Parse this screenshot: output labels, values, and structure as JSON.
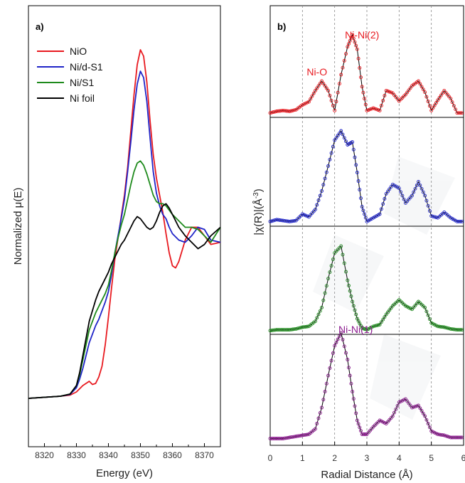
{
  "chart_data": [
    {
      "panel": "a)",
      "type": "line",
      "xlabel": "Energy (eV)",
      "ylabel_prefix": "Normalized ",
      "ylabel_symbol": "μ",
      "ylabel_suffix": "(E)",
      "xlim": [
        8315,
        8375
      ],
      "ylim": [
        -0.35,
        1.9
      ],
      "xticks": [
        8320,
        8330,
        8340,
        8350,
        8360,
        8370
      ],
      "legend_position": "top-left",
      "series": [
        {
          "name": "NiO",
          "color": "#e8191f",
          "x": [
            8315,
            8320,
            8325,
            8328,
            8330,
            8331,
            8332,
            8333,
            8334,
            8335,
            8336,
            8337,
            8338,
            8339,
            8340,
            8341,
            8342,
            8343,
            8344,
            8345,
            8346,
            8347,
            8348,
            8349,
            8350,
            8351,
            8352,
            8353,
            8354,
            8355,
            8356,
            8357,
            8358,
            8359,
            8360,
            8361,
            8362,
            8363,
            8364,
            8366,
            8368,
            8370,
            8372,
            8375
          ],
          "y": [
            0.0,
            0.005,
            0.01,
            0.015,
            0.03,
            0.045,
            0.06,
            0.07,
            0.08,
            0.065,
            0.07,
            0.1,
            0.15,
            0.25,
            0.38,
            0.52,
            0.65,
            0.75,
            0.85,
            0.95,
            1.08,
            1.25,
            1.42,
            1.56,
            1.63,
            1.6,
            1.48,
            1.3,
            1.14,
            1.03,
            0.95,
            0.87,
            0.77,
            0.68,
            0.62,
            0.61,
            0.64,
            0.69,
            0.74,
            0.8,
            0.8,
            0.76,
            0.72,
            0.73
          ]
        },
        {
          "name": "Ni/d-S1",
          "color": "#1f24c8",
          "x": [
            8315,
            8320,
            8325,
            8328,
            8330,
            8331,
            8332,
            8333,
            8334,
            8335,
            8336,
            8337,
            8338,
            8339,
            8340,
            8341,
            8342,
            8343,
            8344,
            8345,
            8346,
            8347,
            8348,
            8349,
            8350,
            8351,
            8352,
            8353,
            8354,
            8355,
            8356,
            8357,
            8358,
            8359,
            8360,
            8362,
            8364,
            8366,
            8368,
            8370,
            8372,
            8375
          ],
          "y": [
            0.0,
            0.005,
            0.01,
            0.018,
            0.05,
            0.09,
            0.14,
            0.2,
            0.26,
            0.3,
            0.34,
            0.37,
            0.41,
            0.45,
            0.5,
            0.58,
            0.68,
            0.76,
            0.84,
            0.93,
            1.06,
            1.2,
            1.35,
            1.47,
            1.53,
            1.5,
            1.39,
            1.22,
            1.06,
            0.96,
            0.9,
            0.86,
            0.84,
            0.8,
            0.77,
            0.74,
            0.73,
            0.76,
            0.8,
            0.79,
            0.74,
            0.73
          ]
        },
        {
          "name": "Ni/S1",
          "color": "#1e8a1c",
          "x": [
            8315,
            8320,
            8325,
            8328,
            8330,
            8331,
            8332,
            8333,
            8334,
            8335,
            8336,
            8337,
            8338,
            8339,
            8340,
            8341,
            8342,
            8343,
            8344,
            8345,
            8346,
            8347,
            8348,
            8349,
            8350,
            8351,
            8352,
            8353,
            8354,
            8355,
            8356,
            8357,
            8358,
            8359,
            8360,
            8362,
            8364,
            8366,
            8368,
            8370,
            8372,
            8375
          ],
          "y": [
            0.0,
            0.005,
            0.01,
            0.02,
            0.06,
            0.11,
            0.18,
            0.25,
            0.32,
            0.36,
            0.4,
            0.43,
            0.46,
            0.49,
            0.53,
            0.6,
            0.68,
            0.75,
            0.81,
            0.86,
            0.93,
            1.0,
            1.06,
            1.1,
            1.11,
            1.09,
            1.05,
            1.0,
            0.95,
            0.92,
            0.91,
            0.91,
            0.9,
            0.88,
            0.86,
            0.83,
            0.8,
            0.8,
            0.79,
            0.76,
            0.73,
            0.8
          ]
        },
        {
          "name": "Ni foil",
          "color": "#000000",
          "x": [
            8315,
            8320,
            8325,
            8328,
            8330,
            8331,
            8332,
            8333,
            8334,
            8335,
            8336,
            8337,
            8338,
            8339,
            8340,
            8341,
            8342,
            8343,
            8344,
            8345,
            8346,
            8347,
            8348,
            8349,
            8350,
            8351,
            8352,
            8353,
            8354,
            8355,
            8356,
            8357,
            8358,
            8359,
            8360,
            8362,
            8364,
            8366,
            8368,
            8370,
            8372,
            8375
          ],
          "y": [
            0.0,
            0.005,
            0.01,
            0.02,
            0.06,
            0.12,
            0.2,
            0.28,
            0.36,
            0.41,
            0.46,
            0.5,
            0.53,
            0.56,
            0.59,
            0.63,
            0.66,
            0.69,
            0.72,
            0.74,
            0.77,
            0.8,
            0.83,
            0.85,
            0.84,
            0.82,
            0.8,
            0.79,
            0.8,
            0.83,
            0.87,
            0.9,
            0.91,
            0.89,
            0.86,
            0.8,
            0.76,
            0.73,
            0.7,
            0.72,
            0.76,
            0.8
          ]
        }
      ]
    },
    {
      "panel": "b)",
      "type": "line",
      "xlabel": "Radial Distance (Å)",
      "ylabel_prefix": "|χ(R)|(Å",
      "ylabel_sup": "-3",
      "ylabel_suffix": ")",
      "xlim": [
        0,
        6
      ],
      "xticks": [
        0,
        1,
        2,
        3,
        4,
        5,
        6
      ],
      "grid": "vertical dashed at each integer",
      "stack": [
        {
          "sample": "NiO",
          "color": "#e8191f",
          "annotations": [
            {
              "text": "Ni-O",
              "x": 1.45
            },
            {
              "text": "Ni-Ni(2)",
              "x": 2.85
            }
          ],
          "r": [
            0,
            0.2,
            0.4,
            0.6,
            0.8,
            1.0,
            1.2,
            1.4,
            1.6,
            1.8,
            2.0,
            2.2,
            2.4,
            2.55,
            2.7,
            2.85,
            3.0,
            3.2,
            3.4,
            3.6,
            3.8,
            4.0,
            4.2,
            4.4,
            4.6,
            4.8,
            5.0,
            5.2,
            5.4,
            5.6,
            5.8,
            6.0
          ],
          "value": [
            0.02,
            0.04,
            0.05,
            0.04,
            0.06,
            0.12,
            0.16,
            0.3,
            0.42,
            0.3,
            0.05,
            0.5,
            0.85,
            1.0,
            0.82,
            0.35,
            0.05,
            0.08,
            0.05,
            0.3,
            0.27,
            0.17,
            0.25,
            0.36,
            0.42,
            0.28,
            0.05,
            0.18,
            0.3,
            0.2,
            0.02,
            0.02
          ]
        },
        {
          "sample": "Ni/d-S1",
          "color": "#1f24c8",
          "annotations": [],
          "r": [
            0,
            0.2,
            0.4,
            0.6,
            0.8,
            1.0,
            1.2,
            1.4,
            1.6,
            1.8,
            2.0,
            2.2,
            2.4,
            2.55,
            2.7,
            2.85,
            3.0,
            3.2,
            3.4,
            3.6,
            3.8,
            4.0,
            4.2,
            4.4,
            4.6,
            4.8,
            5.0,
            5.2,
            5.4,
            5.6,
            5.8,
            6.0
          ],
          "value": [
            0.02,
            0.04,
            0.03,
            0.02,
            0.03,
            0.1,
            0.07,
            0.15,
            0.35,
            0.62,
            0.9,
            1.0,
            0.85,
            0.88,
            0.55,
            0.18,
            0.02,
            0.06,
            0.1,
            0.32,
            0.42,
            0.38,
            0.22,
            0.3,
            0.45,
            0.3,
            0.08,
            0.06,
            0.12,
            0.06,
            0.02,
            0.02
          ]
        },
        {
          "sample": "Ni/S1",
          "color": "#1e8a1c",
          "annotations": [],
          "r": [
            0,
            0.2,
            0.4,
            0.6,
            0.8,
            1.0,
            1.2,
            1.4,
            1.6,
            1.8,
            2.0,
            2.2,
            2.4,
            2.55,
            2.7,
            2.85,
            3.0,
            3.2,
            3.4,
            3.6,
            3.8,
            4.0,
            4.2,
            4.4,
            4.6,
            4.8,
            5.0,
            5.2,
            5.4,
            5.6,
            5.8,
            6.0
          ],
          "value": [
            0.01,
            0.02,
            0.02,
            0.02,
            0.03,
            0.05,
            0.06,
            0.12,
            0.28,
            0.62,
            0.92,
            1.0,
            0.6,
            0.35,
            0.15,
            0.04,
            0.02,
            0.06,
            0.08,
            0.2,
            0.3,
            0.37,
            0.3,
            0.26,
            0.35,
            0.28,
            0.1,
            0.06,
            0.05,
            0.03,
            0.02,
            0.02
          ]
        },
        {
          "sample": "Ni foil",
          "color": "#8b1a8e",
          "annotations": [
            {
              "text": "Ni-Ni(1)",
              "x": 2.65
            }
          ],
          "r": [
            0,
            0.2,
            0.4,
            0.6,
            0.8,
            1.0,
            1.2,
            1.4,
            1.6,
            1.8,
            2.0,
            2.2,
            2.4,
            2.55,
            2.7,
            2.85,
            3.0,
            3.2,
            3.4,
            3.6,
            3.8,
            4.0,
            4.2,
            4.4,
            4.6,
            4.8,
            5.0,
            5.2,
            5.4,
            5.6,
            5.8,
            6.0
          ],
          "value": [
            0.01,
            0.01,
            0.01,
            0.02,
            0.03,
            0.04,
            0.05,
            0.1,
            0.3,
            0.6,
            0.88,
            1.0,
            0.75,
            0.45,
            0.18,
            0.05,
            0.05,
            0.12,
            0.18,
            0.15,
            0.22,
            0.35,
            0.38,
            0.3,
            0.32,
            0.22,
            0.08,
            0.05,
            0.04,
            0.02,
            0.02,
            0.02
          ]
        }
      ]
    }
  ]
}
